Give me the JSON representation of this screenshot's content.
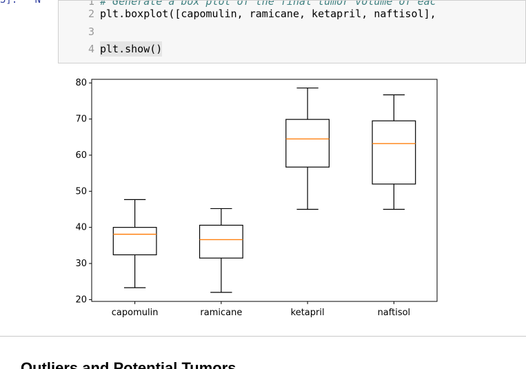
{
  "cell": {
    "prompt": "3]:   N",
    "lines": [
      {
        "num": "1",
        "text": "# Generate a box plot of the final tumor volume of eac",
        "comment": true
      },
      {
        "num": "2",
        "text": "plt.boxplot([capomulin, ramicane, ketapril, naftisol],",
        "comment": false
      },
      {
        "num": "3",
        "text": "",
        "comment": false
      },
      {
        "num": "4",
        "text": "plt.show()",
        "comment": false
      }
    ]
  },
  "chart_data": {
    "type": "boxplot",
    "categories": [
      "capomulin",
      "ramicane",
      "ketapril",
      "naftisol"
    ],
    "boxes": [
      {
        "whisker_low": 23.3,
        "q1": 32.4,
        "median": 38.1,
        "q3": 40.0,
        "whisker_high": 47.7
      },
      {
        "whisker_low": 22.0,
        "q1": 31.5,
        "median": 36.6,
        "q3": 40.6,
        "whisker_high": 45.2
      },
      {
        "whisker_low": 45.0,
        "q1": 56.7,
        "median": 64.5,
        "q3": 69.9,
        "whisker_high": 78.6
      },
      {
        "whisker_low": 45.0,
        "q1": 52.0,
        "median": 63.2,
        "q3": 69.5,
        "whisker_high": 76.7
      }
    ],
    "ylim": [
      19.5,
      81
    ],
    "yticks": [
      20,
      30,
      40,
      50,
      60,
      70,
      80
    ],
    "box_color": "#000000",
    "median_color": "#ff7f0e",
    "grid": false
  },
  "footer_text": "Outliers and Potential Tumors"
}
